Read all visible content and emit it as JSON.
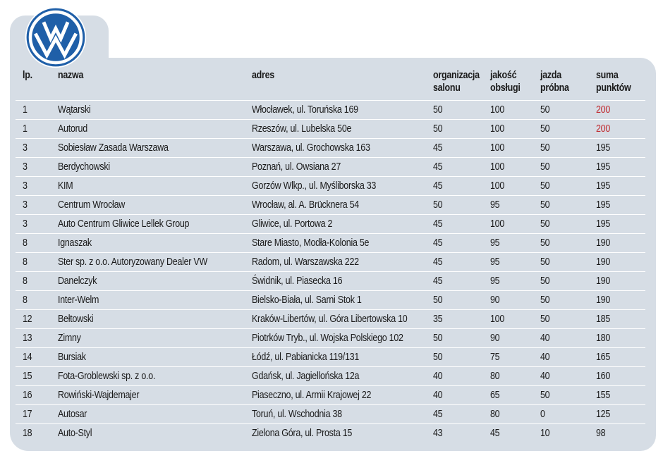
{
  "brand": {
    "logo_icon": "volkswagen-logo-icon",
    "accent": "#1f5fa8"
  },
  "table": {
    "headers": {
      "lp": "lp.",
      "nazwa": "nazwa",
      "adres": "adres",
      "organizacja": [
        "organizacja",
        "salonu"
      ],
      "jakosc": [
        "jakość",
        "obsługi"
      ],
      "jazda": [
        "jazda",
        "próbna"
      ],
      "suma": [
        "suma",
        "punktów"
      ]
    },
    "highlight_color": "#c0282d",
    "rows": [
      {
        "lp": "1",
        "nazwa": "Wątarski",
        "adres": "Włocławek, ul. Toruńska 169",
        "org": "50",
        "jak": "100",
        "jaz": "50",
        "suma": "200",
        "hi": true
      },
      {
        "lp": "1",
        "nazwa": "Autorud",
        "adres": "Rzeszów, ul. Lubelska 50e",
        "org": "50",
        "jak": "100",
        "jaz": "50",
        "suma": "200",
        "hi": true
      },
      {
        "lp": "3",
        "nazwa": "Sobiesław Zasada Warszawa",
        "adres": "Warszawa, ul. Grochowska 163",
        "org": "45",
        "jak": "100",
        "jaz": "50",
        "suma": "195"
      },
      {
        "lp": "3",
        "nazwa": "Berdychowski",
        "adres": "Poznań, ul. Owsiana 27",
        "org": "45",
        "jak": "100",
        "jaz": "50",
        "suma": "195"
      },
      {
        "lp": "3",
        "nazwa": "KIM",
        "adres": "Gorzów Wlkp., ul. Myśliborska 33",
        "org": "45",
        "jak": "100",
        "jaz": "50",
        "suma": "195"
      },
      {
        "lp": "3",
        "nazwa": "Centrum Wrocław",
        "adres": "Wrocław, al. A. Brücknera 54",
        "org": "50",
        "jak": "95",
        "jaz": "50",
        "suma": "195"
      },
      {
        "lp": "3",
        "nazwa": "Auto Centrum Gliwice Lellek Group",
        "adres": "Gliwice, ul. Portowa 2",
        "org": "45",
        "jak": "100",
        "jaz": "50",
        "suma": "195"
      },
      {
        "lp": "8",
        "nazwa": "Ignaszak",
        "adres": "Stare Miasto, Modła-Kolonia 5e",
        "org": "45",
        "jak": "95",
        "jaz": "50",
        "suma": "190"
      },
      {
        "lp": "8",
        "nazwa": "Ster sp. z o.o. Autoryzowany Dealer VW",
        "adres": "Radom, ul. Warszawska 222",
        "org": "45",
        "jak": "95",
        "jaz": "50",
        "suma": "190"
      },
      {
        "lp": "8",
        "nazwa": "Danelczyk",
        "adres": "Świdnik, ul. Piasecka 16",
        "org": "45",
        "jak": "95",
        "jaz": "50",
        "suma": "190"
      },
      {
        "lp": "8",
        "nazwa": "Inter-Welm",
        "adres": "Bielsko-Biała, ul. Sarni Stok 1",
        "org": "50",
        "jak": "90",
        "jaz": "50",
        "suma": "190"
      },
      {
        "lp": "12",
        "nazwa": "Bełtowski",
        "adres": "Kraków-Libertów, ul. Góra Libertowska 10",
        "org": "35",
        "jak": "100",
        "jaz": "50",
        "suma": "185"
      },
      {
        "lp": "13",
        "nazwa": "Zimny",
        "adres": "Piotrków Tryb., ul. Wojska Polskiego 102",
        "org": "50",
        "jak": "90",
        "jaz": "40",
        "suma": "180"
      },
      {
        "lp": "14",
        "nazwa": "Bursiak",
        "adres": "Łódź, ul. Pabianicka 119/131",
        "org": "50",
        "jak": "75",
        "jaz": "40",
        "suma": "165"
      },
      {
        "lp": "15",
        "nazwa": "Fota-Groblewski sp. z o.o.",
        "adres": "Gdańsk, ul. Jagiellońska 12a",
        "org": "40",
        "jak": "80",
        "jaz": "40",
        "suma": "160"
      },
      {
        "lp": "16",
        "nazwa": "Rowiński-Wajdemajer",
        "adres": "Piaseczno, ul. Armii Krajowej 22",
        "org": "40",
        "jak": "65",
        "jaz": "50",
        "suma": "155"
      },
      {
        "lp": "17",
        "nazwa": "Autosar",
        "adres": "Toruń, ul. Wschodnia 38",
        "org": "45",
        "jak": "80",
        "jaz": "0",
        "suma": "125"
      },
      {
        "lp": "18",
        "nazwa": "Auto-Styl",
        "adres": "Zielona Góra, ul. Prosta 15",
        "org": "43",
        "jak": "45",
        "jaz": "10",
        "suma": "98"
      }
    ]
  }
}
